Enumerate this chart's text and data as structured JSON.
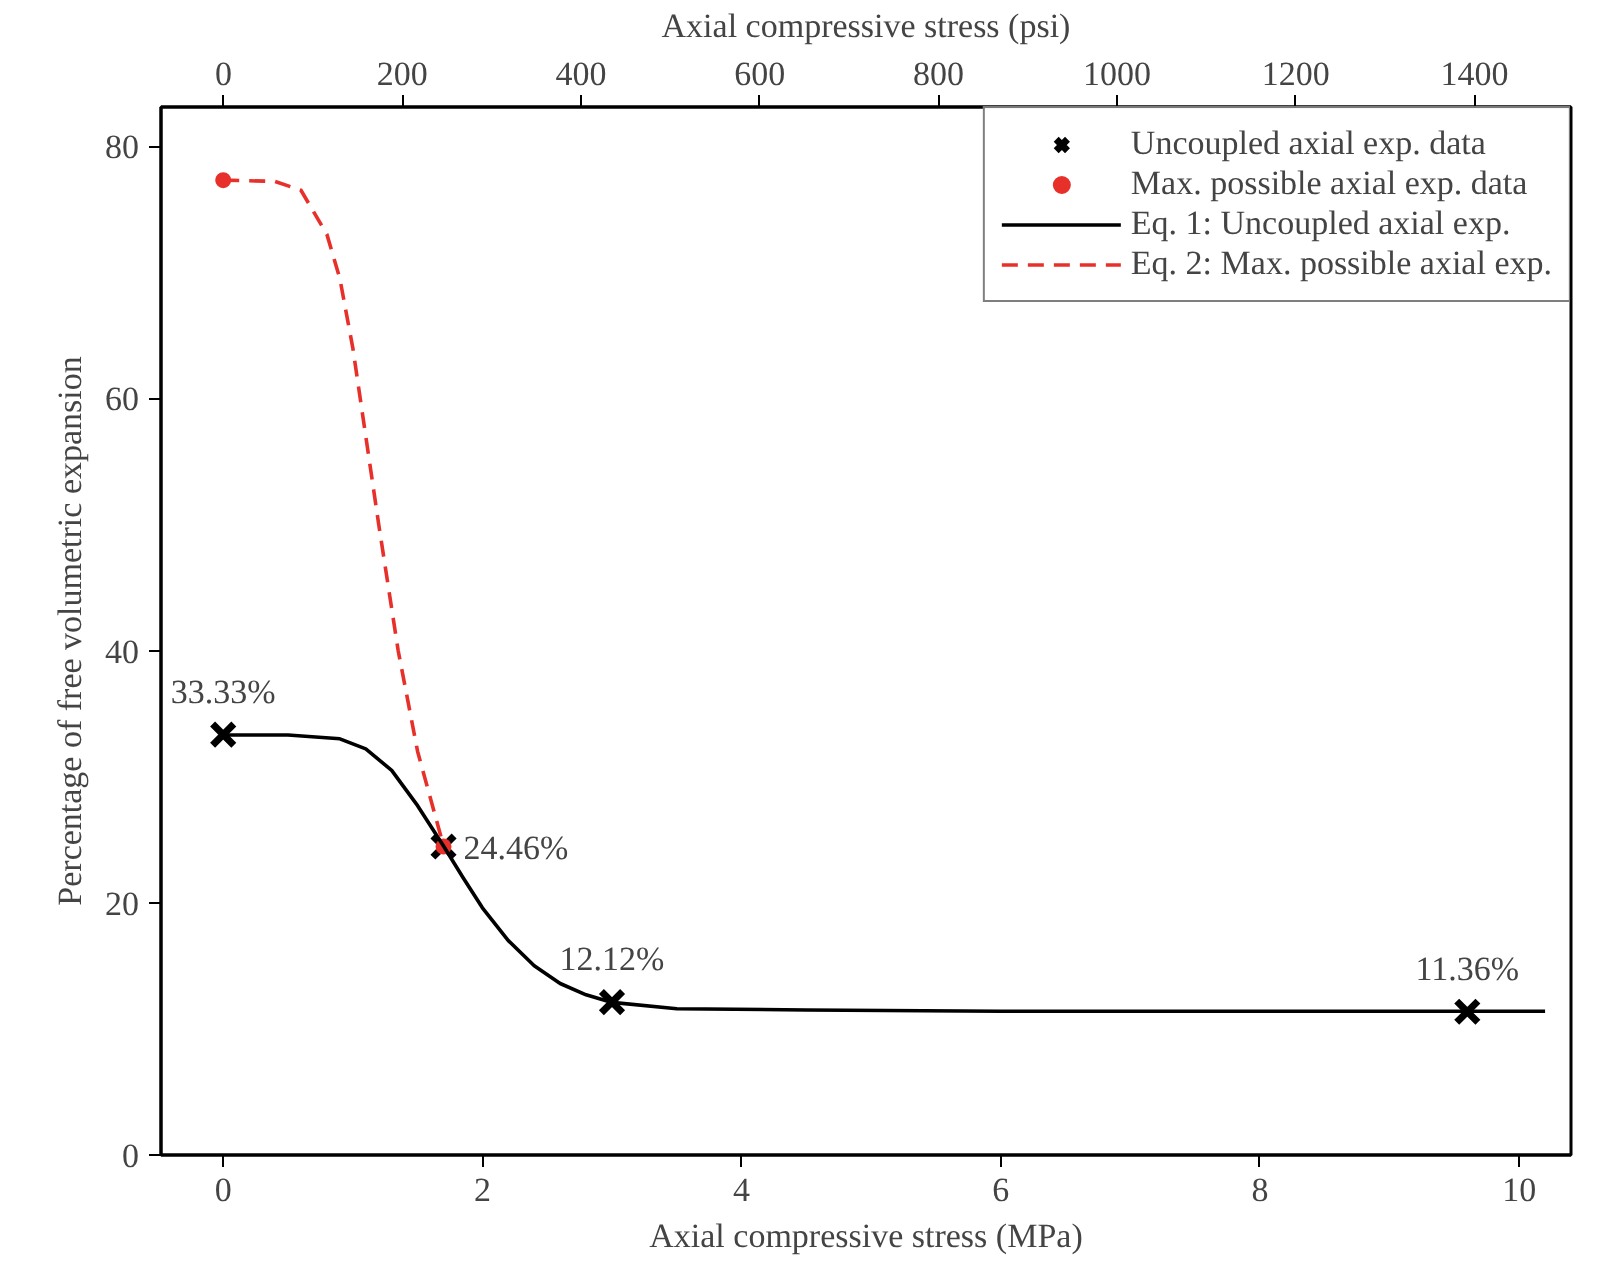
{
  "chart_data": {
    "type": "line",
    "xlabel": "Axial compressive stress (MPa)",
    "ylabel": "Percentage of free volumetric expansion",
    "x2label": "Axial compressive stress (psi)",
    "xlim": [
      -0.48,
      10.4
    ],
    "xticks": [
      0,
      2,
      4,
      6,
      8,
      10
    ],
    "ylim": [
      0,
      83.1
    ],
    "yticks": [
      0,
      20,
      40,
      60,
      80
    ],
    "x2lim": [
      -70,
      1508
    ],
    "x2ticks": [
      0,
      200,
      400,
      600,
      800,
      1000,
      1200,
      1400
    ],
    "grid": false,
    "legend": "top right",
    "series": [
      {
        "name": "Uncoupled axial exp. data",
        "type": "scatter",
        "marker": "cross",
        "color": "#000000",
        "x": [
          0,
          1.7,
          3,
          9.6
        ],
        "values": [
          33.33,
          24.46,
          12.12,
          11.36
        ]
      },
      {
        "name": "Max. possible axial exp. data",
        "type": "scatter",
        "marker": "circle",
        "color": "#e8302a",
        "x": [
          0,
          1.7
        ],
        "values": [
          77.3,
          24.46
        ]
      },
      {
        "name": "Eq. 1: Uncoupled axial exp.",
        "line_style": "solid",
        "color": "#000000",
        "x": [
          0,
          0.5,
          0.9,
          1.1,
          1.3,
          1.5,
          1.7,
          1.85,
          2.0,
          2.2,
          2.4,
          2.6,
          2.8,
          3.0,
          3.5,
          4.5,
          6,
          8,
          10.2
        ],
        "values": [
          33.3,
          33.3,
          33.0,
          32.2,
          30.5,
          27.7,
          24.5,
          22.0,
          19.6,
          17.0,
          15.0,
          13.6,
          12.7,
          12.1,
          11.6,
          11.5,
          11.4,
          11.4,
          11.4
        ]
      },
      {
        "name": "Eq. 2: Max. possible axial exp.",
        "line_style": "dashed",
        "color": "#e8302a",
        "x": [
          0,
          0.4,
          0.6,
          0.8,
          0.9,
          1.0,
          1.1,
          1.2,
          1.35,
          1.5,
          1.7
        ],
        "values": [
          77.3,
          77.2,
          76.5,
          73,
          69.5,
          64,
          57,
          50,
          40,
          32,
          24.5
        ]
      }
    ],
    "annotations": [
      {
        "text": "33.33%",
        "x": 0,
        "y": 33.33
      },
      {
        "text": "24.46%",
        "x": 1.7,
        "y": 24.46
      },
      {
        "text": "12.12%",
        "x": 3,
        "y": 12.12
      },
      {
        "text": "11.36%",
        "x": 9.6,
        "y": 11.36
      }
    ]
  }
}
